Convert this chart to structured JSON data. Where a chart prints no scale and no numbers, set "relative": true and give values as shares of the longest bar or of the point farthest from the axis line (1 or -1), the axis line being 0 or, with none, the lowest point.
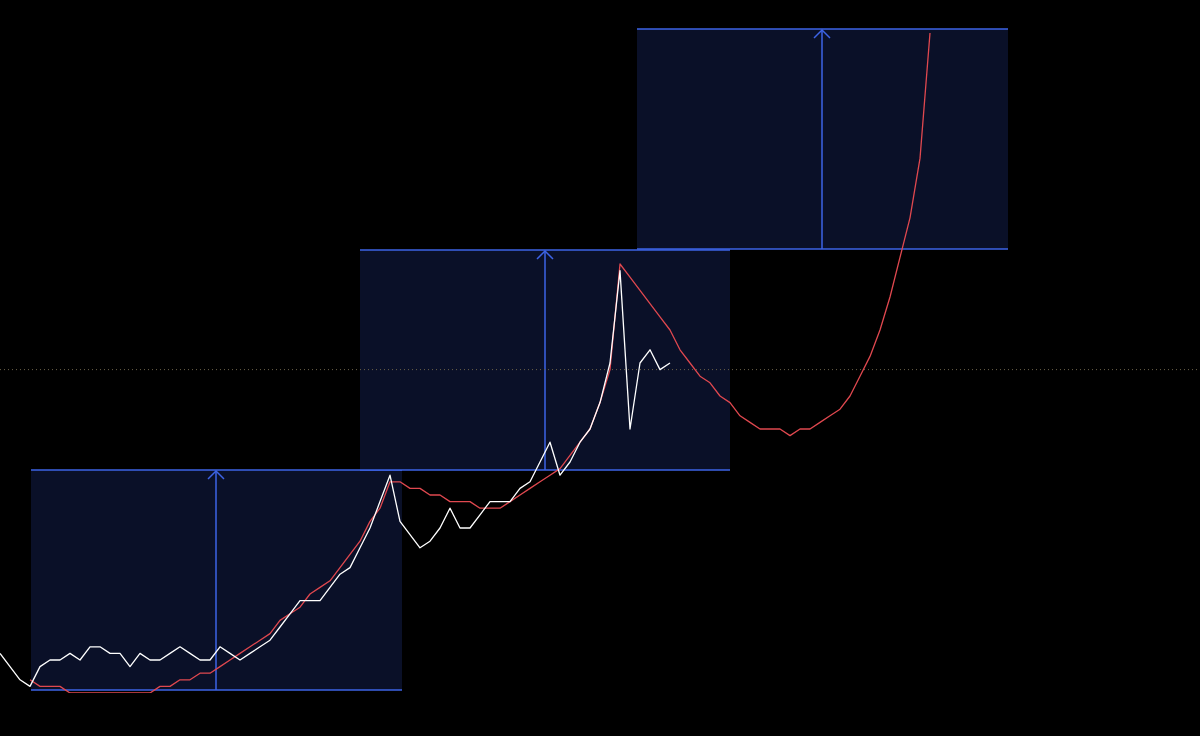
{
  "chart_data": {
    "type": "line",
    "relative": true,
    "categories": [
      null,
      null,
      null,
      null,
      null,
      null,
      null,
      null,
      null,
      null,
      null,
      null,
      null,
      null,
      null,
      null,
      null,
      null,
      null,
      null,
      null,
      null,
      null,
      null,
      null,
      null,
      null,
      null,
      null,
      null,
      null,
      null,
      null,
      null,
      null,
      null,
      null,
      null,
      null,
      null,
      null,
      null,
      null,
      null,
      null,
      null,
      null,
      null,
      null,
      null,
      null,
      null,
      null,
      null,
      null,
      null,
      null,
      null,
      null,
      null,
      null,
      null,
      null,
      null,
      null,
      null,
      null,
      null,
      null,
      null,
      null,
      null,
      null,
      null,
      null,
      null,
      null,
      null,
      null,
      null,
      null,
      null,
      null,
      null,
      null,
      null,
      null,
      null,
      null,
      null,
      null,
      null,
      null,
      null,
      null,
      null,
      null,
      null,
      null,
      null,
      null,
      null,
      null,
      null,
      null,
      null,
      null,
      null,
      null,
      null,
      null,
      null,
      null,
      null,
      null,
      null,
      null,
      null,
      null,
      null,
      null
    ],
    "series": [
      {
        "color": "#ffffff",
        "values": [
          0.06,
          0.04,
          0.02,
          0.01,
          0.04,
          0.05,
          0.05,
          0.06,
          0.05,
          0.07,
          0.07,
          0.06,
          0.06,
          0.04,
          0.06,
          0.05,
          0.05,
          0.06,
          0.07,
          0.06,
          0.05,
          0.05,
          0.07,
          0.06,
          0.05,
          0.06,
          0.07,
          0.08,
          0.1,
          0.12,
          0.14,
          0.14,
          0.14,
          0.16,
          0.18,
          0.19,
          0.22,
          0.25,
          0.29,
          0.33,
          0.26,
          0.24,
          0.22,
          0.23,
          0.25,
          0.28,
          0.25,
          0.25,
          0.27,
          0.29,
          0.29,
          0.29,
          0.31,
          0.32,
          0.35,
          0.38,
          0.33,
          0.35,
          0.38,
          0.4,
          0.44,
          0.5,
          0.64,
          0.4,
          0.5,
          0.52,
          0.49,
          0.5,
          null,
          null,
          null,
          null,
          null,
          null,
          null,
          null,
          null,
          null,
          null,
          null,
          null,
          null,
          null,
          null,
          null,
          null,
          null,
          null,
          null,
          null,
          null,
          null,
          null,
          null,
          null,
          null,
          null,
          null,
          null,
          null,
          null,
          null,
          null,
          null,
          null,
          null,
          null,
          null,
          null,
          null,
          null,
          null,
          null,
          null,
          null,
          null,
          null,
          null,
          null,
          null,
          null
        ]
      },
      {
        "color": "#e0484f",
        "values": [
          null,
          null,
          null,
          0.02,
          0.01,
          0.01,
          0.01,
          0,
          0,
          0,
          0,
          0,
          0,
          0,
          0,
          0,
          0.01,
          0.01,
          0.02,
          0.02,
          0.03,
          0.03,
          0.04,
          0.05,
          0.06,
          0.07,
          0.08,
          0.09,
          0.11,
          0.12,
          0.13,
          0.15,
          0.16,
          0.17,
          0.19,
          0.21,
          0.23,
          0.26,
          0.28,
          0.32,
          0.32,
          0.31,
          0.31,
          0.3,
          0.3,
          0.29,
          0.29,
          0.29,
          0.28,
          0.28,
          0.28,
          0.29,
          0.3,
          0.31,
          0.32,
          0.33,
          0.34,
          0.36,
          0.38,
          0.4,
          0.44,
          0.49,
          0.65,
          0.63,
          0.61,
          0.59,
          0.57,
          0.55,
          0.52,
          0.5,
          0.48,
          0.47,
          0.45,
          0.44,
          0.42,
          0.41,
          0.4,
          0.4,
          0.4,
          0.39,
          0.4,
          0.4,
          0.41,
          0.42,
          0.43,
          0.45,
          0.48,
          0.51,
          0.55,
          0.6,
          0.66,
          0.72,
          0.81,
          1,
          null,
          null,
          null,
          null,
          null,
          null,
          null,
          null,
          null,
          null,
          null,
          null,
          null,
          null,
          null,
          null,
          null,
          null,
          null,
          null,
          null,
          null,
          null,
          null,
          null,
          null,
          null
        ]
      }
    ],
    "ref_lines": [
      {
        "axis": "y",
        "value": 0.49,
        "color": "#6b6048",
        "line_style": "dotted"
      }
    ]
  }
}
